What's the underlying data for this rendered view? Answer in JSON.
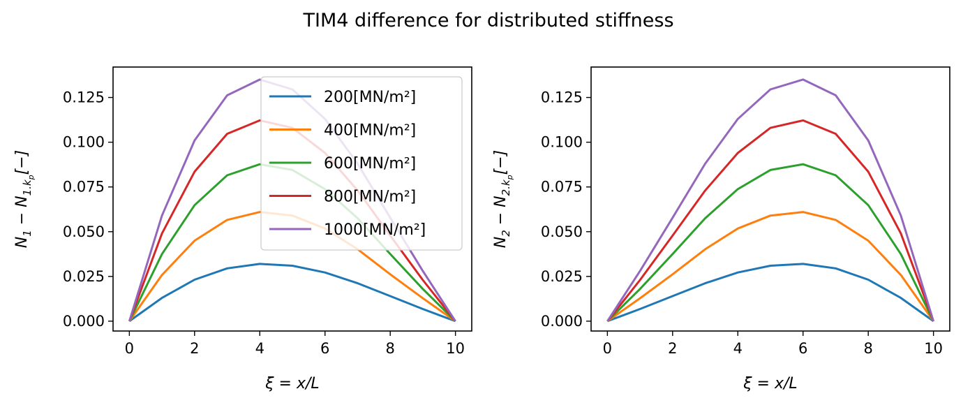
{
  "figure": {
    "title": "TIM4 difference for distributed stiffness"
  },
  "chart_data": [
    {
      "type": "line",
      "xlabel": "ξ = x/L",
      "ylabel_main": "N",
      "ylabel_sub1": "1",
      "ylabel_mid": " − N",
      "ylabel_sub2": "1.",
      "ylabel_sub3": "k",
      "ylabel_sub4": "p",
      "ylabel_tail": "[−]",
      "xlim": [
        -0.5,
        10.5
      ],
      "ylim": [
        -0.0055,
        0.142
      ],
      "xticks": [
        0,
        2,
        4,
        6,
        8,
        10
      ],
      "xtick_labels": [
        "0",
        "2",
        "4",
        "6",
        "8",
        "10"
      ],
      "yticks": [
        0.0,
        0.025,
        0.05,
        0.075,
        0.1,
        0.125
      ],
      "ytick_labels": [
        "0.000",
        "0.025",
        "0.050",
        "0.075",
        "0.100",
        "0.125"
      ],
      "grid": false,
      "legend_placement": "upper-right",
      "x": [
        0,
        1,
        2,
        3,
        4,
        5,
        6,
        7,
        8,
        9,
        10
      ],
      "series": [
        {
          "name": "200[MN/m²]",
          "color": "#1f77b4",
          "values": [
            0,
            0.013,
            0.0232,
            0.0295,
            0.032,
            0.031,
            0.0272,
            0.0212,
            0.014,
            0.0068,
            0
          ]
        },
        {
          "name": "400[MN/m²]",
          "color": "#ff7f0e",
          "values": [
            0,
            0.0258,
            0.045,
            0.0566,
            0.061,
            0.059,
            0.0518,
            0.0402,
            0.0262,
            0.0128,
            0
          ]
        },
        {
          "name": "600[MN/m²]",
          "color": "#2ca02c",
          "values": [
            0,
            0.0375,
            0.0648,
            0.0815,
            0.0877,
            0.0845,
            0.0738,
            0.0575,
            0.0375,
            0.018,
            0
          ]
        },
        {
          "name": "800[MN/m²]",
          "color": "#d62728",
          "values": [
            0,
            0.049,
            0.0835,
            0.1047,
            0.1122,
            0.108,
            0.094,
            0.073,
            0.0478,
            0.023,
            0
          ]
        },
        {
          "name": "1000[MN/m²]",
          "color": "#9467bd",
          "values": [
            0,
            0.059,
            0.101,
            0.1262,
            0.135,
            0.1295,
            0.113,
            0.088,
            0.0578,
            0.028,
            0
          ]
        }
      ]
    },
    {
      "type": "line",
      "xlabel": "ξ = x/L",
      "ylabel_main": "N",
      "ylabel_sub1": "2",
      "ylabel_mid": " − N",
      "ylabel_sub2": "2.",
      "ylabel_sub3": "k",
      "ylabel_sub4": "p",
      "ylabel_tail": "[−]",
      "xlim": [
        -0.5,
        10.5
      ],
      "ylim": [
        -0.0055,
        0.142
      ],
      "xticks": [
        0,
        2,
        4,
        6,
        8,
        10
      ],
      "xtick_labels": [
        "0",
        "2",
        "4",
        "6",
        "8",
        "10"
      ],
      "yticks": [
        0.0,
        0.025,
        0.05,
        0.075,
        0.1,
        0.125
      ],
      "ytick_labels": [
        "0.000",
        "0.025",
        "0.050",
        "0.075",
        "0.100",
        "0.125"
      ],
      "grid": false,
      "x": [
        0,
        1,
        2,
        3,
        4,
        5,
        6,
        7,
        8,
        9,
        10
      ],
      "series": [
        {
          "color": "#1f77b4",
          "values": [
            0,
            0.0068,
            0.014,
            0.0212,
            0.0272,
            0.031,
            0.032,
            0.0295,
            0.0232,
            0.013,
            0
          ]
        },
        {
          "color": "#ff7f0e",
          "values": [
            0,
            0.0128,
            0.0262,
            0.0402,
            0.0518,
            0.059,
            0.061,
            0.0566,
            0.045,
            0.0258,
            0
          ]
        },
        {
          "color": "#2ca02c",
          "values": [
            0,
            0.018,
            0.0375,
            0.0575,
            0.0738,
            0.0845,
            0.0877,
            0.0815,
            0.0648,
            0.0375,
            0
          ]
        },
        {
          "color": "#d62728",
          "values": [
            0,
            0.023,
            0.0478,
            0.073,
            0.094,
            0.108,
            0.1122,
            0.1047,
            0.0835,
            0.049,
            0
          ]
        },
        {
          "color": "#9467bd",
          "values": [
            0,
            0.028,
            0.0578,
            0.088,
            0.113,
            0.1295,
            0.135,
            0.1262,
            0.101,
            0.059,
            0
          ]
        }
      ]
    }
  ]
}
